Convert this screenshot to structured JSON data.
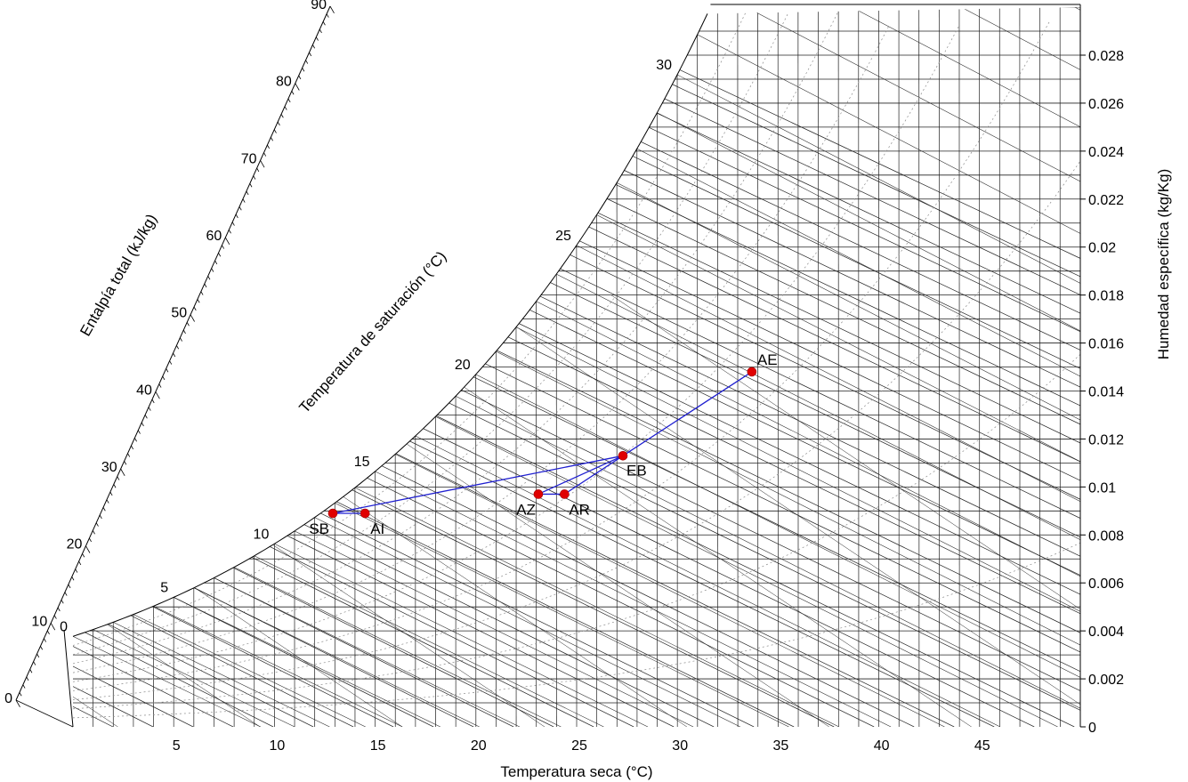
{
  "chart_data": {
    "type": "scatter",
    "title": "",
    "xlabel": "Temperatura seca (°C)",
    "ylabel": "Humedad específica (kg/Kg)",
    "enthalpy_label": "Entalpía total (kJ/kg)",
    "saturation_label": "Temperatura de saturación (°C)",
    "xlim": [
      0,
      50
    ],
    "ylim": [
      0,
      0.03
    ],
    "x_ticks": [
      5,
      10,
      15,
      20,
      25,
      30,
      35,
      40,
      45
    ],
    "y_ticks": [
      {
        "value": 0,
        "label": "0"
      },
      {
        "value": 0.002,
        "label": "0.002"
      },
      {
        "value": 0.004,
        "label": "0.004"
      },
      {
        "value": 0.006,
        "label": "0.006"
      },
      {
        "value": 0.008,
        "label": "0.008"
      },
      {
        "value": 0.01,
        "label": "0.01"
      },
      {
        "value": 0.012,
        "label": "0.012"
      },
      {
        "value": 0.014,
        "label": "0.014"
      },
      {
        "value": 0.016,
        "label": "0.016"
      },
      {
        "value": 0.018,
        "label": "0.018"
      },
      {
        "value": 0.02,
        "label": "0.02"
      },
      {
        "value": 0.022,
        "label": "0.022"
      },
      {
        "value": 0.024,
        "label": "0.024"
      },
      {
        "value": 0.026,
        "label": "0.026"
      },
      {
        "value": 0.028,
        "label": "0.028"
      }
    ],
    "enthalpy_ticks": [
      0,
      10,
      20,
      30,
      40,
      50,
      60,
      70,
      80,
      90
    ],
    "saturation_ticks": [
      0,
      5,
      10,
      15,
      20,
      25,
      30
    ],
    "grid": true,
    "points": [
      {
        "name": "AE",
        "x": 33.7,
        "y": 0.0148
      },
      {
        "name": "EB",
        "x": 27.3,
        "y": 0.0113
      },
      {
        "name": "AR",
        "x": 24.4,
        "y": 0.0097
      },
      {
        "name": "AZ",
        "x": 23.1,
        "y": 0.0097
      },
      {
        "name": "AI",
        "x": 14.5,
        "y": 0.0089
      },
      {
        "name": "SB",
        "x": 12.9,
        "y": 0.0089
      }
    ],
    "process_path": [
      "AE",
      "EB",
      "AR",
      "AZ",
      "EB",
      "SB",
      "AI"
    ],
    "colors": {
      "process_line": "#1f1fd0",
      "point": "#e00000",
      "grid": "#222222",
      "rh_dotted": "#8a8a8a"
    }
  }
}
